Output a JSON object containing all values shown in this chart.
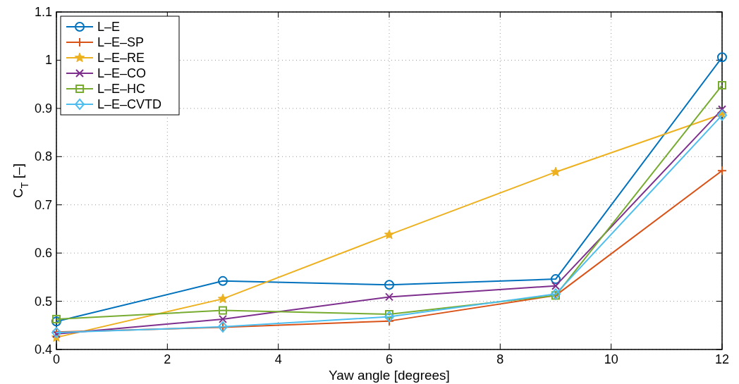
{
  "chart_data": {
    "type": "line",
    "xlabel": "Yaw angle [degrees]",
    "ylabel": "C$_{T}$ [–]",
    "x": [
      0,
      3,
      6,
      9,
      12
    ],
    "series": [
      {
        "name": "L–E",
        "color": "#0072bd",
        "marker": "circle",
        "values": [
          0.458,
          0.542,
          0.534,
          0.546,
          1.006
        ]
      },
      {
        "name": "L–E–SP",
        "color": "#d95319",
        "marker": "plus",
        "values": [
          0.436,
          0.446,
          0.459,
          0.512,
          0.771
        ]
      },
      {
        "name": "L–E–RE",
        "color": "#edb120",
        "marker": "star",
        "values": [
          0.425,
          0.505,
          0.638,
          0.768,
          0.888
        ]
      },
      {
        "name": "L–E–CO",
        "color": "#7e2f8e",
        "marker": "cross",
        "values": [
          0.432,
          0.463,
          0.509,
          0.532,
          0.898
        ]
      },
      {
        "name": "L–E–HC",
        "color": "#77ac30",
        "marker": "square",
        "values": [
          0.463,
          0.481,
          0.473,
          0.512,
          0.948
        ]
      },
      {
        "name": "L–E–CVTD",
        "color": "#4dbeee",
        "marker": "diamond",
        "values": [
          0.435,
          0.447,
          0.468,
          0.515,
          0.886
        ]
      }
    ],
    "xlim": [
      0,
      12
    ],
    "xticks": [
      0,
      2,
      4,
      6,
      8,
      10,
      12
    ],
    "ylim": [
      0.4,
      1.1
    ],
    "yticks": [
      0.4,
      0.5,
      0.6,
      0.7,
      0.8,
      0.9,
      1,
      1.1
    ],
    "grid": true,
    "legend": "top left",
    "line_style": "solid"
  }
}
